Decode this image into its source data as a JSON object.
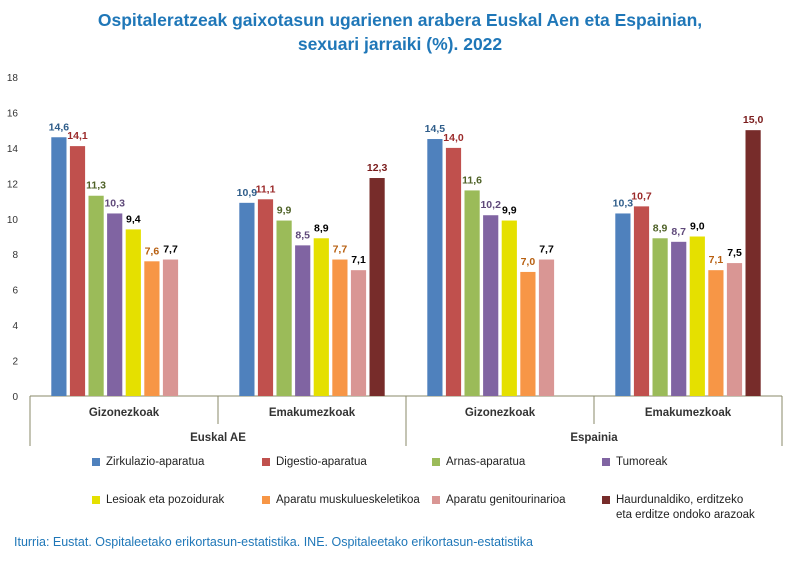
{
  "title": {
    "line1": "Ospitaleratzeak gaixotasun ugarienen arabera Euskal Aen eta Espainian,",
    "line2": "sexuari jarraiki (%). 2022"
  },
  "source": "Iturria: Eustat. Ospitaleetako erikortasun-estatistika. INE. Ospitaleetako erikortasun-estatistika",
  "chart_data": {
    "type": "bar",
    "ylim": [
      0,
      18
    ],
    "yticks": [
      0,
      2,
      4,
      6,
      8,
      10,
      12,
      14,
      16,
      18
    ],
    "groups": [
      {
        "name": "Euskal AE",
        "categories": [
          "Gizonezkoak",
          "Emakumezkoak"
        ]
      },
      {
        "name": "Espainia",
        "categories": [
          "Gizonezkoak",
          "Emakumezkoak"
        ]
      }
    ],
    "series": [
      {
        "name": "Zirkulazio-aparatua",
        "color": "#4f81bd",
        "label_color": "#2f5d8a",
        "values": [
          14.6,
          10.9,
          14.5,
          10.3
        ],
        "labels": [
          "14,6",
          "10,9",
          "14,5",
          "10,3"
        ]
      },
      {
        "name": "Digestio-aparatua",
        "color": "#c0504d",
        "label_color": "#9b2a2a",
        "values": [
          14.1,
          11.1,
          14.0,
          10.7
        ],
        "labels": [
          "14,1",
          "11,1",
          "14,0",
          "10,7"
        ]
      },
      {
        "name": "Arnas-aparatua",
        "color": "#9bbb59",
        "label_color": "#4f6228",
        "values": [
          11.3,
          9.9,
          11.6,
          8.9
        ],
        "labels": [
          "11,3",
          "9,9",
          "11,6",
          "8,9"
        ]
      },
      {
        "name": "Tumoreak",
        "color": "#8064a2",
        "label_color": "#5f497a",
        "values": [
          10.3,
          8.5,
          10.2,
          8.7
        ],
        "labels": [
          "10,3",
          "8,5",
          "10,2",
          "8,7"
        ]
      },
      {
        "name": "Lesioak eta pozoidurak",
        "color": "#e5e000",
        "label_color": "#000000",
        "values": [
          9.4,
          8.9,
          9.9,
          9.0
        ],
        "labels": [
          "9,4",
          "8,9",
          "9,9",
          "9,0"
        ]
      },
      {
        "name": "Aparatu muskulueskeletikoa",
        "color": "#f79646",
        "label_color": "#b75f10",
        "values": [
          7.6,
          7.7,
          7.0,
          7.1
        ],
        "labels": [
          "7,6",
          "7,7",
          "7,0",
          "7,1"
        ]
      },
      {
        "name": "Aparatu genitourinarioa",
        "color": "#d99694",
        "label_color": "#000000",
        "values": [
          7.7,
          7.1,
          7.7,
          7.5
        ],
        "labels": [
          "7,7",
          "7,1",
          "7,7",
          "7,5"
        ]
      },
      {
        "name": "Haurdunaldiko, erditzeko\neta erditze ondoko arazoak",
        "color": "#772c2a",
        "label_color": "#7a1c1c",
        "values": [
          null,
          12.3,
          null,
          15.0
        ],
        "labels": [
          "",
          "12,3",
          "",
          "15,0"
        ]
      }
    ]
  }
}
